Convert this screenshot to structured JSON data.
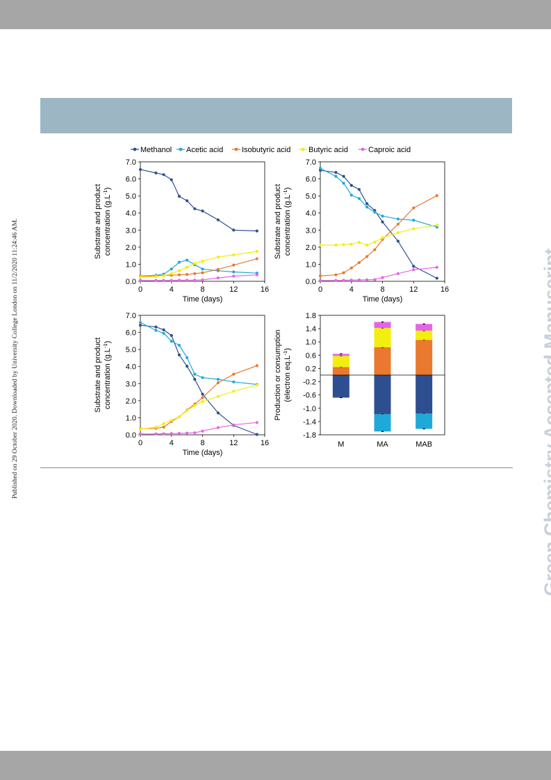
{
  "side_note": "Published on 29 October 2020. Downloaded by University College London on 11/2/2020 11:24:46 AM.",
  "watermark": "Green Chemistry Accepted Manuscript",
  "colors": {
    "Methanol": "#2e4f8f",
    "Acetic acid": "#1fa9d8",
    "Isobutyric acid": "#e9792f",
    "Butyric acid": "#f2ee0f",
    "Caproic acid": "#e564e5"
  },
  "chart_data": [
    {
      "type": "line",
      "panel": "top-left",
      "legend": [
        "Methanol",
        "Acetic acid",
        "Isobutyric acid",
        "Butyric acid",
        "Caproic acid"
      ],
      "legend_position": "top",
      "xlabel": "Time (days)",
      "ylabel_line1": "Substrate and product",
      "ylabel_line2": "concentration (g.L",
      "ylabel_sup": "-1",
      "ylabel_end": ")",
      "xlim": [
        0,
        16
      ],
      "ylim": [
        0,
        7
      ],
      "xticks": [
        "0",
        "4",
        "8",
        "12",
        "16"
      ],
      "yticks": [
        "0.0",
        "1.0",
        "2.0",
        "3.0",
        "4.0",
        "5.0",
        "6.0",
        "7.0"
      ],
      "series": [
        {
          "name": "Methanol",
          "x": [
            0,
            2,
            3,
            4,
            5,
            6,
            7,
            8,
            10,
            12,
            15
          ],
          "y": [
            6.55,
            6.35,
            6.25,
            5.95,
            4.98,
            4.72,
            4.25,
            4.12,
            3.6,
            3.0,
            2.95
          ]
        },
        {
          "name": "Acetic acid",
          "x": [
            0,
            2,
            3,
            4,
            5,
            6,
            7,
            8,
            10,
            12,
            15
          ],
          "y": [
            0.3,
            0.35,
            0.42,
            0.72,
            1.12,
            1.24,
            0.97,
            0.72,
            0.62,
            0.55,
            0.48
          ]
        },
        {
          "name": "Isobutyric acid",
          "x": [
            0,
            2,
            3,
            4,
            5,
            6,
            7,
            8,
            10,
            12,
            15
          ],
          "y": [
            0.3,
            0.32,
            0.34,
            0.36,
            0.38,
            0.4,
            0.45,
            0.5,
            0.7,
            0.95,
            1.32
          ]
        },
        {
          "name": "Butyric acid",
          "x": [
            0,
            2,
            3,
            4,
            5,
            6,
            7,
            8,
            10,
            12,
            15
          ],
          "y": [
            0.25,
            0.28,
            0.32,
            0.45,
            0.62,
            0.82,
            1.05,
            1.18,
            1.42,
            1.55,
            1.75
          ]
        },
        {
          "name": "Caproic acid",
          "x": [
            0,
            2,
            3,
            4,
            5,
            6,
            7,
            8,
            10,
            12,
            15
          ],
          "y": [
            0.05,
            0.05,
            0.05,
            0.05,
            0.06,
            0.06,
            0.07,
            0.08,
            0.2,
            0.3,
            0.38
          ]
        }
      ]
    },
    {
      "type": "line",
      "panel": "top-right",
      "xlabel": "Time (days)",
      "ylabel_line1": "Substrate and product",
      "ylabel_line2": "concentration (g.L",
      "ylabel_sup": "-1",
      "ylabel_end": ")",
      "xlim": [
        0,
        16
      ],
      "ylim": [
        0,
        7
      ],
      "xticks": [
        "0",
        "4",
        "8",
        "12",
        "16"
      ],
      "yticks": [
        "0.0",
        "1.0",
        "2.0",
        "3.0",
        "4.0",
        "5.0",
        "6.0",
        "7.0"
      ],
      "series": [
        {
          "name": "Methanol",
          "x": [
            0,
            2,
            3,
            4,
            5,
            6,
            7,
            8,
            10,
            12,
            15
          ],
          "y": [
            6.5,
            6.38,
            6.15,
            5.62,
            5.38,
            4.55,
            4.15,
            3.48,
            2.35,
            0.88,
            0.18
          ]
        },
        {
          "name": "Acetic acid",
          "x": [
            0,
            2,
            3,
            4,
            5,
            6,
            7,
            8,
            10,
            12,
            15
          ],
          "y": [
            6.62,
            6.15,
            5.75,
            5.05,
            4.85,
            4.35,
            4.05,
            3.82,
            3.65,
            3.58,
            3.18
          ]
        },
        {
          "name": "Isobutyric acid",
          "x": [
            0,
            2,
            3,
            4,
            5,
            6,
            7,
            8,
            10,
            12,
            15
          ],
          "y": [
            0.32,
            0.38,
            0.5,
            0.78,
            1.1,
            1.45,
            1.85,
            2.45,
            3.35,
            4.3,
            5.02
          ]
        },
        {
          "name": "Butyric acid",
          "x": [
            0,
            2,
            3,
            4,
            5,
            6,
            7,
            8,
            10,
            12,
            15
          ],
          "y": [
            2.12,
            2.12,
            2.15,
            2.18,
            2.28,
            2.12,
            2.3,
            2.55,
            2.85,
            3.08,
            3.3
          ]
        },
        {
          "name": "Caproic acid",
          "x": [
            0,
            2,
            3,
            4,
            5,
            6,
            7,
            8,
            10,
            12,
            15
          ],
          "y": [
            0.05,
            0.05,
            0.06,
            0.07,
            0.08,
            0.09,
            0.1,
            0.22,
            0.45,
            0.68,
            0.82
          ]
        }
      ]
    },
    {
      "type": "line",
      "panel": "bottom-left",
      "xlabel": "Time (days)",
      "ylabel_line1": "Substrate and product",
      "ylabel_line2": "concentration (g.L",
      "ylabel_sup": "-1",
      "ylabel_end": ")",
      "xlim": [
        0,
        16
      ],
      "ylim": [
        0,
        7
      ],
      "xticks": [
        "0",
        "4",
        "8",
        "12",
        "16"
      ],
      "yticks": [
        "0.0",
        "1.0",
        "2.0",
        "3.0",
        "4.0",
        "5.0",
        "6.0",
        "7.0"
      ],
      "series": [
        {
          "name": "Methanol",
          "x": [
            0,
            2,
            3,
            4,
            5,
            6,
            7,
            8,
            10,
            12,
            15
          ],
          "y": [
            6.42,
            6.32,
            6.15,
            5.82,
            4.68,
            4.02,
            3.25,
            2.38,
            1.28,
            0.55,
            0.02
          ]
        },
        {
          "name": "Acetic acid",
          "x": [
            0,
            2,
            3,
            4,
            5,
            6,
            7,
            8,
            10,
            12,
            15
          ],
          "y": [
            6.58,
            6.12,
            5.95,
            5.48,
            5.25,
            4.52,
            3.55,
            3.35,
            3.25,
            3.1,
            2.95
          ]
        },
        {
          "name": "Isobutyric acid",
          "x": [
            0,
            2,
            3,
            4,
            5,
            6,
            7,
            8,
            10,
            12,
            15
          ],
          "y": [
            0.35,
            0.38,
            0.45,
            0.78,
            1.05,
            1.45,
            1.8,
            2.18,
            3.05,
            3.55,
            4.05
          ]
        },
        {
          "name": "Butyric acid",
          "x": [
            0,
            2,
            3,
            4,
            5,
            6,
            7,
            8,
            10,
            12,
            15
          ],
          "y": [
            0.32,
            0.45,
            0.65,
            0.85,
            1.05,
            1.42,
            1.72,
            1.95,
            2.25,
            2.55,
            2.92
          ]
        },
        {
          "name": "Caproic acid",
          "x": [
            0,
            2,
            3,
            4,
            5,
            6,
            7,
            8,
            10,
            12,
            15
          ],
          "y": [
            0.05,
            0.05,
            0.06,
            0.07,
            0.08,
            0.1,
            0.12,
            0.22,
            0.42,
            0.58,
            0.72
          ]
        }
      ]
    },
    {
      "type": "bar",
      "panel": "bottom-right",
      "stacked": true,
      "categories": [
        "M",
        "MA",
        "MAB"
      ],
      "ylabel_line1": "Production or consumption",
      "ylabel_line2": "(electron eq.L",
      "ylabel_sup": "-1",
      "ylabel_end": ")",
      "ylim": [
        -1.8,
        1.8
      ],
      "yticks": [
        "1.8",
        "1.4",
        "1.0",
        "0.6",
        "0.2",
        "-0.2",
        "-0.6",
        "-1.0",
        "-1.4",
        "-1.8"
      ],
      "series": [
        {
          "name": "Methanol",
          "values": [
            -0.68,
            -1.18,
            -1.16
          ]
        },
        {
          "name": "Acetic acid",
          "values": [
            0.0,
            -0.52,
            -0.46
          ]
        },
        {
          "name": "Isobutyric acid",
          "values": [
            0.24,
            0.84,
            1.06
          ]
        },
        {
          "name": "Butyric acid",
          "values": [
            0.34,
            0.58,
            0.28
          ]
        },
        {
          "name": "Caproic acid",
          "values": [
            0.06,
            0.18,
            0.2
          ]
        }
      ]
    }
  ]
}
